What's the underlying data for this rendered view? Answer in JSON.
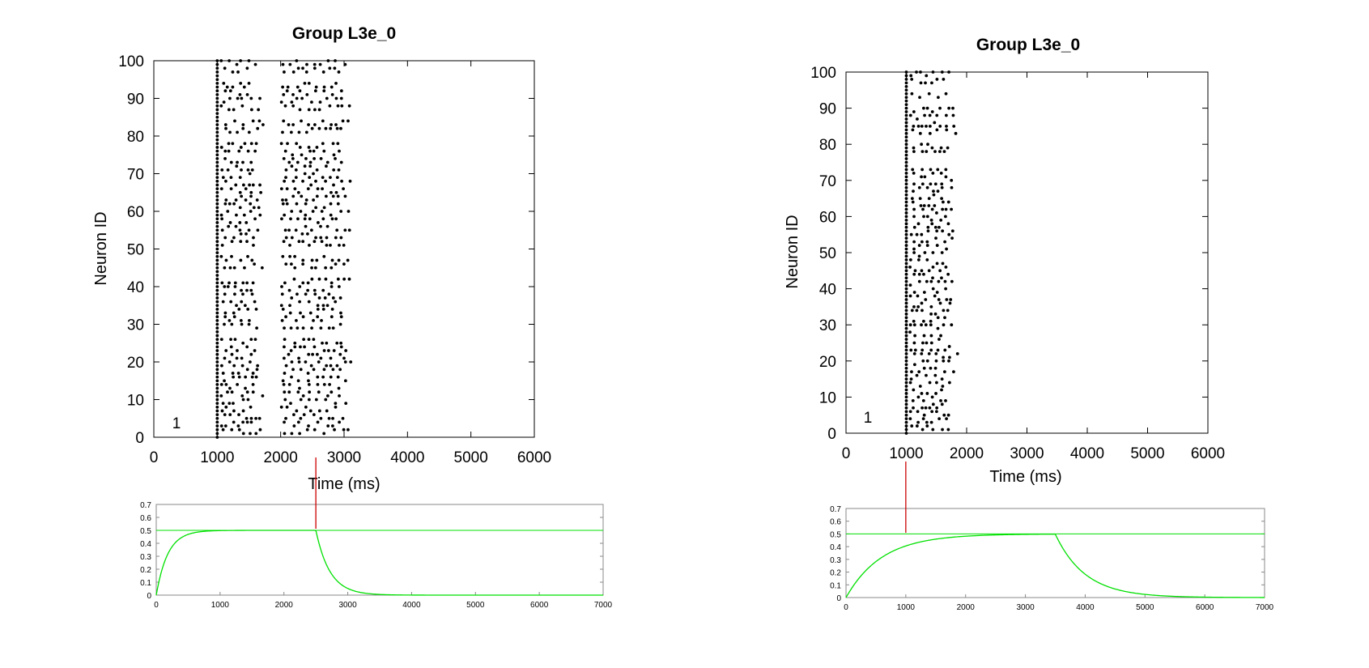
{
  "chart_data": [
    {
      "type": "scatter",
      "panel": "left-raster",
      "title": "Group L3e_0",
      "xlabel": "Time (ms)",
      "ylabel": "Neuron ID",
      "xlim": [
        0,
        6000
      ],
      "ylim": [
        0,
        100
      ],
      "xticks": [
        "0",
        "1000",
        "2000",
        "3000",
        "4000",
        "5000",
        "6000"
      ],
      "yticks": [
        "0",
        "10",
        "20",
        "30",
        "40",
        "50",
        "60",
        "70",
        "80",
        "90",
        "100"
      ],
      "annotation": "1",
      "marker_color": "#000000",
      "onset_ms": 1000,
      "description_values": {
        "burst_1": [
          1000,
          1700
        ],
        "gap": [
          1700,
          1950
        ],
        "burst_2": [
          1950,
          3050
        ]
      }
    },
    {
      "type": "line",
      "panel": "left-trace",
      "xlim": [
        0,
        7000
      ],
      "ylim": [
        0,
        0.7
      ],
      "xticks": [
        "0",
        "1000",
        "2000",
        "3000",
        "4000",
        "5000",
        "6000",
        "7000"
      ],
      "yticks": [
        "0",
        "0.1",
        "0.2",
        "0.3",
        "0.4",
        "0.5",
        "0.6",
        "0.7"
      ],
      "reference_level": 0.5,
      "rise_start": 0,
      "rise_tau": 180,
      "plateau": 0.5,
      "decay_start": 2500,
      "decay_tau": 220,
      "marker_x": 2500,
      "line_color": "#00e000",
      "ref_color": "#00e000",
      "marker_color": "#cc0000"
    },
    {
      "type": "scatter",
      "panel": "right-raster",
      "title": "Group L3e_0",
      "xlabel": "Time (ms)",
      "ylabel": "Neuron ID",
      "xlim": [
        0,
        6000
      ],
      "ylim": [
        0,
        100
      ],
      "xticks": [
        "0",
        "1000",
        "2000",
        "3000",
        "4000",
        "5000",
        "6000"
      ],
      "yticks": [
        "0",
        "10",
        "20",
        "30",
        "40",
        "50",
        "60",
        "70",
        "80",
        "90",
        "100"
      ],
      "annotation": "1",
      "marker_color": "#000000",
      "onset_ms": 1000,
      "description_values": {
        "burst_1": [
          1000,
          1800
        ]
      }
    },
    {
      "type": "line",
      "panel": "right-trace",
      "xlim": [
        0,
        7000
      ],
      "ylim": [
        0,
        0.7
      ],
      "xticks": [
        "0",
        "1000",
        "2000",
        "3000",
        "4000",
        "5000",
        "6000",
        "7000"
      ],
      "yticks": [
        "0",
        "0.1",
        "0.2",
        "0.3",
        "0.4",
        "0.5",
        "0.6",
        "0.7"
      ],
      "reference_level": 0.5,
      "rise_start": 0,
      "rise_tau": 600,
      "plateau": 0.5,
      "decay_start": 3500,
      "decay_tau": 500,
      "marker_x": 1000,
      "line_color": "#00e000",
      "ref_color": "#00e000",
      "marker_color": "#cc0000"
    }
  ]
}
